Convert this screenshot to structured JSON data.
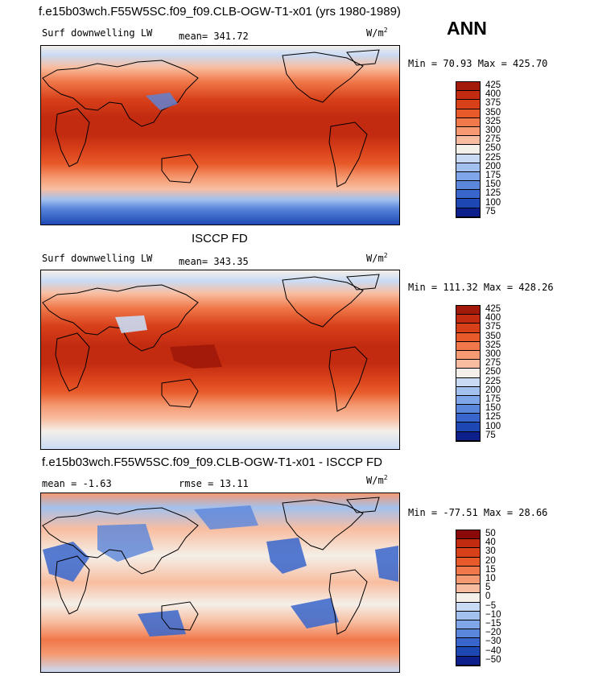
{
  "header": {
    "title": "f.e15b03wch.F55W5SC.f09_f09.CLB-OGW-T1-x01 (yrs 1980-1989)",
    "season": "ANN"
  },
  "panels": [
    {
      "heading": "",
      "variable": "Surf downwelling LW",
      "stat": "mean= 341.72",
      "units": "W/m",
      "units_exp": "2",
      "minmax": "Min =  70.93 Max = 425.70"
    },
    {
      "heading": "ISCCP FD",
      "variable": "Surf downwelling LW",
      "stat": "mean= 343.35",
      "units": "W/m",
      "units_exp": "2",
      "minmax": "Min = 111.32 Max = 428.26"
    },
    {
      "heading": "f.e15b03wch.F55W5SC.f09_f09.CLB-OGW-T1-x01 - ISCCP FD",
      "variable": "mean =  -1.63",
      "stat": "rmse =  13.11",
      "units": "W/m",
      "units_exp": "2",
      "minmax": "Min = -77.51 Max =  28.66"
    }
  ],
  "chart_data": [
    {
      "type": "heatmap",
      "title": "f.e15b03wch.F55W5SC.f09_f09.CLB-OGW-T1-x01 (yrs 1980-1989)",
      "subtitle": "Surf downwelling LW",
      "units": "W/m2",
      "mean": 341.72,
      "min": 70.93,
      "max": 425.7,
      "colorbar_levels": [
        "425",
        "400",
        "375",
        "350",
        "325",
        "300",
        "275",
        "250",
        "225",
        "200",
        "175",
        "150",
        "125",
        "100",
        "75"
      ],
      "colorbar_colors": [
        "#a31a0a",
        "#c22b10",
        "#d8401a",
        "#e85a2a",
        "#f0784a",
        "#f59a72",
        "#f8bda0",
        "#f4efe8",
        "#c9dbf4",
        "#a3c1ee",
        "#7ea6e8",
        "#5a86dc",
        "#3866cc",
        "#1d48b3",
        "#0c1f8a"
      ]
    },
    {
      "type": "heatmap",
      "title": "ISCCP FD",
      "subtitle": "Surf downwelling LW",
      "units": "W/m2",
      "mean": 343.35,
      "min": 111.32,
      "max": 428.26,
      "colorbar_levels": [
        "425",
        "400",
        "375",
        "350",
        "325",
        "300",
        "275",
        "250",
        "225",
        "200",
        "175",
        "150",
        "125",
        "100",
        "75"
      ],
      "colorbar_colors": [
        "#a31a0a",
        "#c22b10",
        "#d8401a",
        "#e85a2a",
        "#f0784a",
        "#f59a72",
        "#f8bda0",
        "#f4efe8",
        "#c9dbf4",
        "#a3c1ee",
        "#7ea6e8",
        "#5a86dc",
        "#3866cc",
        "#1d48b3",
        "#0c1f8a"
      ]
    },
    {
      "type": "heatmap",
      "title": "f.e15b03wch.F55W5SC.f09_f09.CLB-OGW-T1-x01 - ISCCP FD",
      "units": "W/m2",
      "mean": -1.63,
      "rmse": 13.11,
      "min": -77.51,
      "max": 28.66,
      "colorbar_levels": [
        "50",
        "40",
        "30",
        "20",
        "15",
        "10",
        "5",
        "0",
        "−5",
        "−10",
        "−15",
        "−20",
        "−30",
        "−40",
        "−50"
      ],
      "colorbar_colors": [
        "#8a0a0a",
        "#c22b10",
        "#d8401a",
        "#e85a2a",
        "#f0784a",
        "#f59a72",
        "#f8bda0",
        "#f4efe8",
        "#c9dbf4",
        "#a3c1ee",
        "#7ea6e8",
        "#5a86dc",
        "#3866cc",
        "#1d48b3",
        "#0c1f8a"
      ]
    }
  ]
}
